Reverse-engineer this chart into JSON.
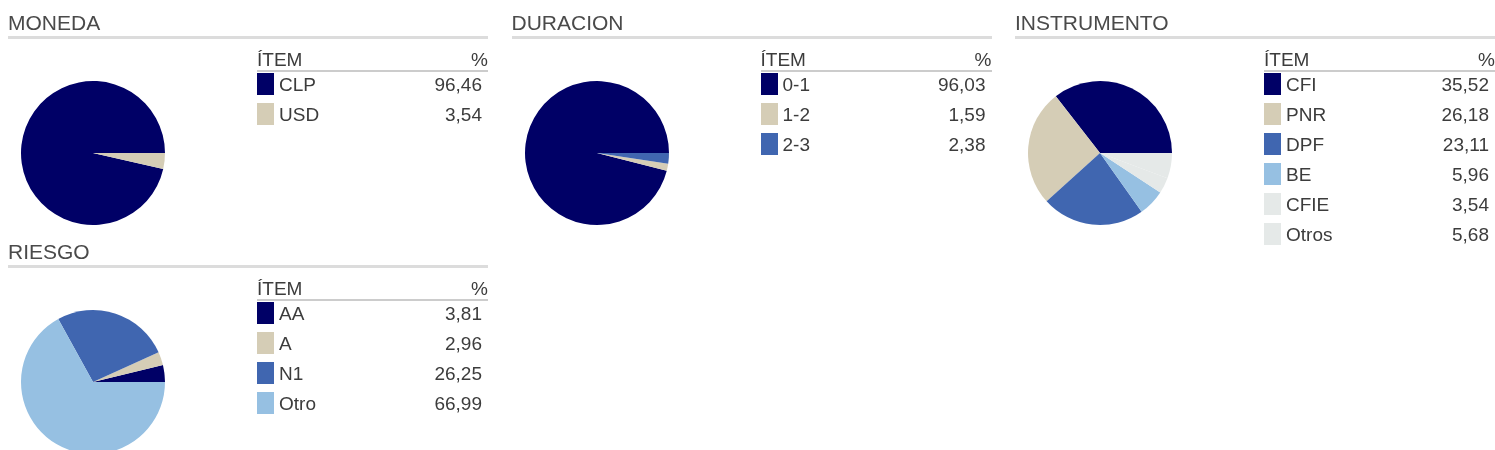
{
  "chart_data": [
    {
      "type": "pie",
      "title": "MONEDA",
      "legend_title": "ÍTEM",
      "annotations": [
        "%"
      ],
      "categories": [
        "CLP",
        "USD"
      ],
      "values": [
        96.46,
        3.54
      ],
      "value_labels": [
        "96,46",
        "3,54"
      ],
      "colors": [
        "#000066",
        "#d5cdb6"
      ],
      "legend": "right"
    },
    {
      "type": "pie",
      "title": "DURACION",
      "legend_title": "ÍTEM",
      "annotations": [
        "%"
      ],
      "categories": [
        "0-1",
        "1-2",
        "2-3"
      ],
      "values": [
        96.03,
        1.59,
        2.38
      ],
      "value_labels": [
        "96,03",
        "1,59",
        "2,38"
      ],
      "colors": [
        "#000066",
        "#d5cdb6",
        "#4066b0"
      ],
      "legend": "right"
    },
    {
      "type": "pie",
      "title": "INSTRUMENTO",
      "legend_title": "ÍTEM",
      "annotations": [
        "%"
      ],
      "categories": [
        "CFI",
        "PNR",
        "DPF",
        "BE",
        "CFIE",
        "Otros"
      ],
      "values": [
        35.52,
        26.18,
        23.11,
        5.96,
        3.54,
        5.68
      ],
      "value_labels": [
        "35,52",
        "26,18",
        "23,11",
        "5,96",
        "3,54",
        "5,68"
      ],
      "colors": [
        "#000066",
        "#d5cdb6",
        "#4066b0",
        "#96c0e2",
        "#e5e9e8",
        "#e5e9e8"
      ],
      "legend": "right"
    },
    {
      "type": "pie",
      "title": "RIESGO",
      "legend_title": "ÍTEM",
      "annotations": [
        "%"
      ],
      "categories": [
        "AA",
        "A",
        "N1",
        "Otro"
      ],
      "values": [
        3.81,
        2.96,
        26.25,
        66.99
      ],
      "value_labels": [
        "3,81",
        "2,96",
        "26,25",
        "66,99"
      ],
      "colors": [
        "#000066",
        "#d5cdb6",
        "#4066b0",
        "#96c0e2"
      ],
      "legend": "right"
    }
  ]
}
